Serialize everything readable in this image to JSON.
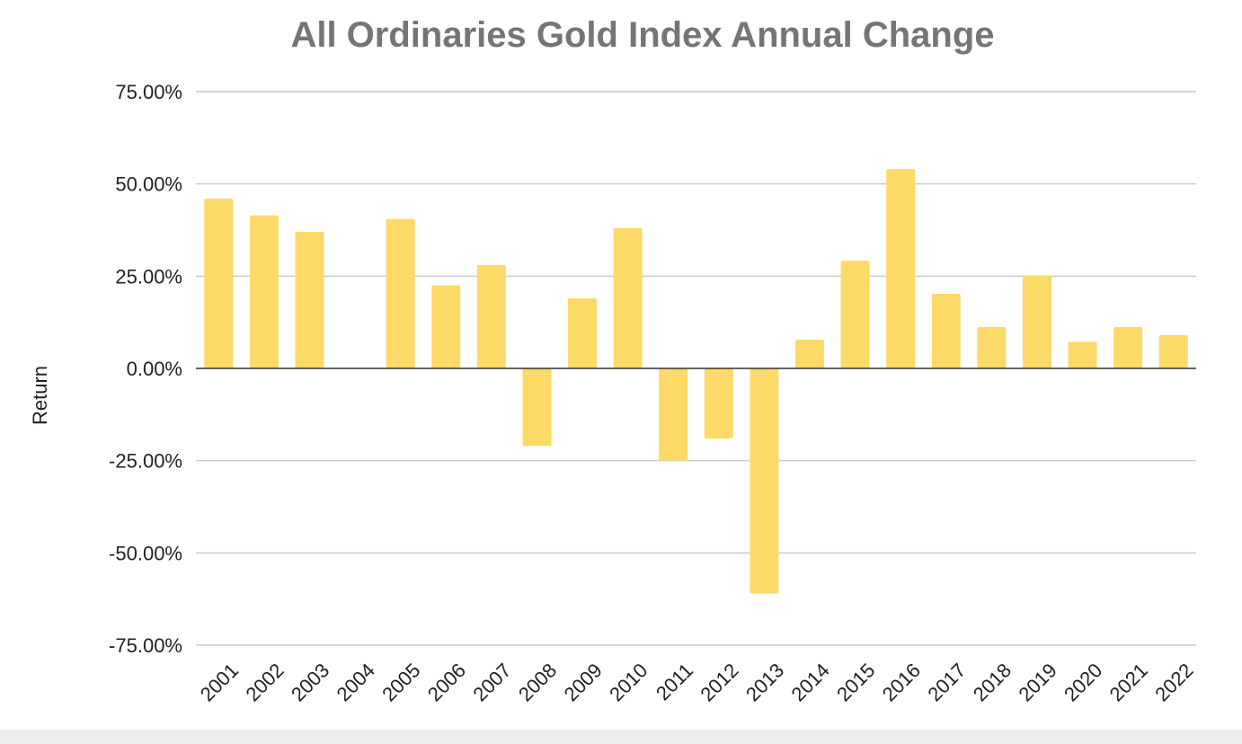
{
  "chart_data": {
    "type": "bar",
    "title": "All Ordinaries Gold Index Annual Change",
    "xlabel": "",
    "ylabel": "Return",
    "ylim": [
      -75,
      75
    ],
    "yticks": [
      75,
      50,
      25,
      0,
      -25,
      -50,
      -75
    ],
    "ytick_labels": [
      "75.00%",
      "50.00%",
      "25.00%",
      "0.00%",
      "-25.00%",
      "-50.00%",
      "-75.00%"
    ],
    "categories": [
      "2001",
      "2002",
      "2003",
      "2004",
      "2005",
      "2006",
      "2007",
      "2008",
      "2009",
      "2010",
      "2011",
      "2012",
      "2013",
      "2014",
      "2015",
      "2016",
      "2017",
      "2018",
      "2019",
      "2020",
      "2021",
      "2022"
    ],
    "values": [
      46,
      41.5,
      37,
      0,
      40.5,
      22.5,
      28,
      -21,
      19,
      38,
      -25,
      -19,
      -61,
      7.8,
      29.2,
      54,
      20.2,
      11.2,
      25.2,
      7.2,
      11.2,
      9
    ],
    "grid": true,
    "colors": {
      "bar": "#fdd967",
      "grid": "#cccccc",
      "zero_line": "#333333",
      "title": "#757575",
      "text": "#222222"
    }
  }
}
